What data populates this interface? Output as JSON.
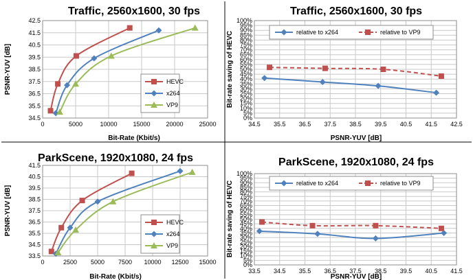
{
  "chart_data": [
    {
      "type": "line",
      "title": "Traffic,  2560x1600, 30 fps",
      "xlabel": "Bit-Rate (Kbit/s)",
      "ylabel": "PSNR-YUV [dB]",
      "xlim": [
        0,
        25000
      ],
      "ylim": [
        34.5,
        42.5
      ],
      "xticks": [
        "0",
        "5000",
        "10000",
        "15000",
        "20000",
        "25000"
      ],
      "yticks": [
        "34.5",
        "35.5",
        "36.5",
        "37.5",
        "38.5",
        "39.5",
        "40.5",
        "41.5",
        "42.5"
      ],
      "grid": true,
      "legend_position": "center-right",
      "series": [
        {
          "name": "HEVC",
          "color": "#c0504d",
          "marker": "square",
          "dashed": false,
          "x": [
            1200,
            2300,
            5100,
            13200
          ],
          "y": [
            35.1,
            37.3,
            39.6,
            41.9
          ]
        },
        {
          "name": "x264",
          "color": "#4f81bd",
          "marker": "diamond",
          "dashed": false,
          "x": [
            2000,
            3700,
            7800,
            17600
          ],
          "y": [
            34.9,
            37.2,
            39.4,
            41.7
          ]
        },
        {
          "name": "VP9",
          "color": "#9bbb59",
          "marker": "triangle",
          "dashed": false,
          "x": [
            2600,
            5000,
            10400,
            23100
          ],
          "y": [
            35.0,
            37.3,
            39.6,
            41.9
          ]
        }
      ]
    },
    {
      "type": "line",
      "title": "Traffic, 2560x1600, 30 fps",
      "xlabel": "PSNR-YUV [dB]",
      "ylabel": "Bit-rate saving of HEVC",
      "xlim": [
        34.5,
        42.5
      ],
      "ylim": [
        0,
        100
      ],
      "xticks": [
        "34.5",
        "35.5",
        "36.5",
        "37.5",
        "38.5",
        "39.5",
        "40.5",
        "41.5",
        "42.5"
      ],
      "yticks": [
        "0%",
        "5%",
        "10%",
        "15%",
        "20%",
        "25%",
        "30%",
        "35%",
        "40%",
        "45%",
        "50%",
        "55%",
        "60%",
        "65%",
        "70%",
        "75%",
        "80%",
        "85%",
        "90%",
        "95%",
        "100%"
      ],
      "grid": true,
      "legend_position": "top",
      "series": [
        {
          "name": "relative to x264",
          "color": "#4f81bd",
          "marker": "diamond",
          "dashed": false,
          "x": [
            34.9,
            37.2,
            39.4,
            41.7
          ],
          "y": [
            41,
            37,
            33,
            26
          ]
        },
        {
          "name": "relative to VP9",
          "color": "#c0504d",
          "marker": "square",
          "dashed": true,
          "x": [
            35.1,
            37.3,
            39.6,
            41.9
          ],
          "y": [
            52,
            51,
            50,
            43
          ]
        }
      ]
    },
    {
      "type": "line",
      "title": "ParkScene, 1920x1080, 24 fps",
      "xlabel": "Bit-Rate (Kbit/s)",
      "ylabel": "PSNR-YUV [dB]",
      "xlim": [
        0,
        15000
      ],
      "ylim": [
        33.5,
        41.5
      ],
      "xticks": [
        "0",
        "2500",
        "5000",
        "7500",
        "10000",
        "12500",
        "15000"
      ],
      "yticks": [
        "33.5",
        "34.5",
        "35.5",
        "36.5",
        "37.5",
        "38.5",
        "39.5",
        "40.5",
        "41.5"
      ],
      "grid": true,
      "legend_position": "center-right",
      "series": [
        {
          "name": "HEVC",
          "color": "#c0504d",
          "marker": "square",
          "dashed": false,
          "x": [
            800,
            1700,
            3600,
            8100
          ],
          "y": [
            33.9,
            36.0,
            38.4,
            40.8
          ]
        },
        {
          "name": "x264",
          "color": "#4f81bd",
          "marker": "diamond",
          "dashed": false,
          "x": [
            1200,
            2500,
            5000,
            12500
          ],
          "y": [
            33.7,
            36.0,
            38.3,
            41.0
          ]
        },
        {
          "name": "VP9",
          "color": "#9bbb59",
          "marker": "triangle",
          "dashed": false,
          "x": [
            1400,
            3000,
            6400,
            13600
          ],
          "y": [
            33.8,
            35.8,
            38.3,
            40.9
          ]
        }
      ]
    },
    {
      "type": "line",
      "title": "ParkScene, 1920x1080, 24 fps",
      "xlabel": "PSNR-YUV [dB]",
      "ylabel": "Bit-rate saving of HEVC",
      "xlim": [
        33.5,
        41.5
      ],
      "ylim": [
        0,
        100
      ],
      "xticks": [
        "33.5",
        "34.5",
        "35.5",
        "36.5",
        "37.5",
        "38.5",
        "39.5",
        "40.5",
        "41.5"
      ],
      "yticks": [
        "0%",
        "5%",
        "10%",
        "15%",
        "20%",
        "25%",
        "30%",
        "35%",
        "40%",
        "45%",
        "50%",
        "55%",
        "60%",
        "65%",
        "70%",
        "75%",
        "80%",
        "85%",
        "90%",
        "95%",
        "100%"
      ],
      "grid": true,
      "legend_position": "top",
      "series": [
        {
          "name": "relative to x264",
          "color": "#4f81bd",
          "marker": "diamond",
          "dashed": false,
          "x": [
            33.7,
            36.0,
            38.3,
            41.0
          ],
          "y": [
            37,
            34,
            29,
            35
          ]
        },
        {
          "name": "relative to VP9",
          "color": "#c0504d",
          "marker": "square",
          "dashed": true,
          "x": [
            33.8,
            35.8,
            38.3,
            40.9
          ],
          "y": [
            47,
            43,
            43,
            40
          ]
        }
      ]
    }
  ]
}
